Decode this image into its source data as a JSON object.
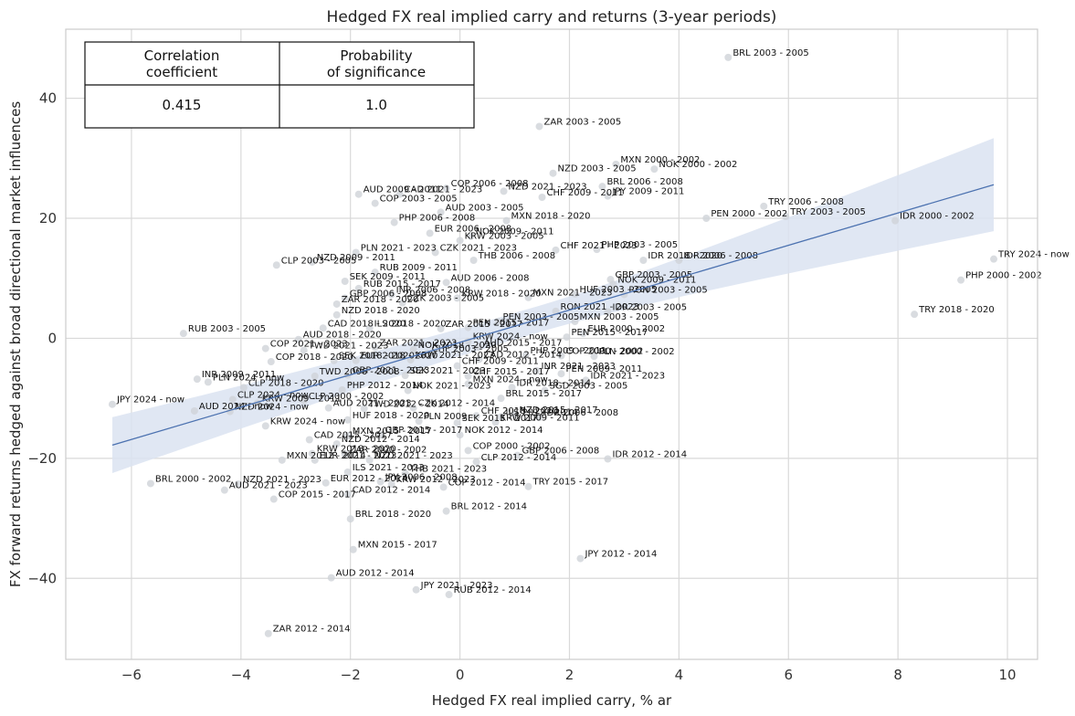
{
  "chart_data": {
    "type": "scatter",
    "title": "Hedged FX real implied carry and returns (3-year periods)",
    "xlabel": "Hedged FX real implied carry, % ar",
    "ylabel": "FX forward returns hedged against broad directional market influences",
    "xlim": [
      -7.2,
      10.55
    ],
    "ylim": [
      -53.5,
      51.5
    ],
    "xticks": [
      -6,
      -4,
      -2,
      0,
      2,
      4,
      6,
      8,
      10
    ],
    "yticks": [
      -40,
      -20,
      0,
      20,
      40
    ],
    "xtick_labels": [
      "−6",
      "−4",
      "−2",
      "0",
      "2",
      "4",
      "6",
      "8",
      "10"
    ],
    "ytick_labels": [
      "−40",
      "−20",
      "0",
      "20",
      "40"
    ],
    "grid": true,
    "colors": {
      "point": "#cfd3d8",
      "line": "#4c72b0",
      "band": "#dbe3f1",
      "grid": "#d9d9d9",
      "frame": "#cccccc"
    },
    "regression": {
      "x": [
        -6.35,
        9.75
      ],
      "y": [
        -17.8,
        25.6
      ],
      "band_lower_right": 18.0,
      "band_upper_right": 33.5,
      "band_lower_left": -22.6,
      "band_upper_left": -13.3
    },
    "stats_table": {
      "headers": [
        [
          "Correlation",
          "coefficient"
        ],
        [
          "Probability",
          "of significance"
        ]
      ],
      "values": [
        "0.415",
        "1.0"
      ]
    },
    "points": [
      {
        "label": "BRL 2003 - 2005",
        "x": 4.9,
        "y": 46.8
      },
      {
        "label": "ZAR 2003 - 2005",
        "x": 1.45,
        "y": 35.3
      },
      {
        "label": "MXN 2000 - 2002",
        "x": 2.85,
        "y": 29.0
      },
      {
        "label": "NOK 2000 - 2002",
        "x": 3.55,
        "y": 28.2
      },
      {
        "label": "NZD 2003 - 2005",
        "x": 1.7,
        "y": 27.5
      },
      {
        "label": "BRL 2006 - 2008",
        "x": 2.6,
        "y": 25.3
      },
      {
        "label": "AUD 2009 - 2011",
        "x": -1.85,
        "y": 24.0
      },
      {
        "label": "CAD 2021 - 2023",
        "x": -1.1,
        "y": 24.0
      },
      {
        "label": "COP 2006 - 2008",
        "x": -0.25,
        "y": 25.0
      },
      {
        "label": "NZD 2021 - 2023",
        "x": 0.8,
        "y": 24.5
      },
      {
        "label": "CHF 2009 - 2011",
        "x": 1.5,
        "y": 23.5
      },
      {
        "label": "JPY 2009 - 2011",
        "x": 2.7,
        "y": 23.7
      },
      {
        "label": "COP 2003 - 2005",
        "x": -1.55,
        "y": 22.5
      },
      {
        "label": "TRY 2006 - 2008",
        "x": 5.55,
        "y": 22.0
      },
      {
        "label": "PEN 2000 - 2002",
        "x": 4.5,
        "y": 20.0
      },
      {
        "label": "TRY 2003 - 2005",
        "x": 5.95,
        "y": 20.3
      },
      {
        "label": "IDR 2000 - 2002",
        "x": 7.95,
        "y": 19.6
      },
      {
        "label": "AUD 2003 - 2005",
        "x": -0.35,
        "y": 21.0
      },
      {
        "label": "PHP 2006 - 2008",
        "x": -1.2,
        "y": 19.3
      },
      {
        "label": "MXN 2018 - 2020",
        "x": 0.85,
        "y": 19.6
      },
      {
        "label": "EUR 2006 - 2008",
        "x": -0.55,
        "y": 17.5
      },
      {
        "label": "NOK 2009 - 2011",
        "x": 0.2,
        "y": 17.0
      },
      {
        "label": "KRW 2003 - 2005",
        "x": 0.0,
        "y": 16.3
      },
      {
        "label": "PLN 2021 - 2023",
        "x": -1.9,
        "y": 14.3
      },
      {
        "label": "CZK 2021 - 2023",
        "x": -0.45,
        "y": 14.3
      },
      {
        "label": "CHF 2021 - 2023",
        "x": 1.75,
        "y": 14.7
      },
      {
        "label": "PHP 2003 - 2005",
        "x": 2.5,
        "y": 14.8
      },
      {
        "label": "THB 2006 - 2008",
        "x": 0.25,
        "y": 13.0
      },
      {
        "label": "IDR 2018 - 2020",
        "x": 3.35,
        "y": 13.0
      },
      {
        "label": "IDR 2006 - 2008",
        "x": 4.0,
        "y": 13.0
      },
      {
        "label": "CLP 2003 - 2005",
        "x": -3.35,
        "y": 12.2
      },
      {
        "label": "NZD 2009 - 2011",
        "x": -2.7,
        "y": 12.7
      },
      {
        "label": "TRY 2024 - now",
        "x": 9.75,
        "y": 13.2
      },
      {
        "label": "RUB 2009 - 2011",
        "x": -1.55,
        "y": 11.0
      },
      {
        "label": "SEK 2009 - 2011",
        "x": -2.1,
        "y": 9.5
      },
      {
        "label": "AUD 2006 - 2008",
        "x": -0.25,
        "y": 9.3
      },
      {
        "label": "GBP 2003 - 2005",
        "x": 2.75,
        "y": 9.8
      },
      {
        "label": "NOK 2009 - 2011",
        "x": 2.8,
        "y": 9.0
      },
      {
        "label": "PHP 2000 - 2002",
        "x": 9.15,
        "y": 9.7
      },
      {
        "label": "RUB 2015 - 2017",
        "x": -1.85,
        "y": 8.3
      },
      {
        "label": "INR 2006 - 2008",
        "x": -1.25,
        "y": 7.3
      },
      {
        "label": "HUF 2003 - 2005",
        "x": 2.1,
        "y": 7.4
      },
      {
        "label": "RON 2003 - 2005",
        "x": 3.0,
        "y": 7.3
      },
      {
        "label": "GBP 2006 - 2008",
        "x": -2.1,
        "y": 6.7
      },
      {
        "label": "KRW 2018 - 2020",
        "x": -0.05,
        "y": 6.7
      },
      {
        "label": "MXN 2021 - 2023",
        "x": 1.25,
        "y": 6.8
      },
      {
        "label": "CZK 2003 - 2005",
        "x": -1.05,
        "y": 5.9
      },
      {
        "label": "ZAR 2018 - 2020",
        "x": -2.25,
        "y": 5.7
      },
      {
        "label": "NZD 2018 - 2020",
        "x": -2.25,
        "y": 3.9
      },
      {
        "label": "RON 2021 - 2023",
        "x": 1.75,
        "y": 4.5
      },
      {
        "label": "TRY 2018 - 2020",
        "x": 8.3,
        "y": 4.0
      },
      {
        "label": "IDR 2003 - 2005",
        "x": 2.7,
        "y": 4.4
      },
      {
        "label": "PEN 2003 - 2005",
        "x": 0.7,
        "y": 2.8
      },
      {
        "label": "MXN 2003 - 2005",
        "x": 2.1,
        "y": 2.8
      },
      {
        "label": "RUB 2003 - 2005",
        "x": -5.05,
        "y": 0.8
      },
      {
        "label": "CAD 2018 - 2020",
        "x": -2.5,
        "y": 1.7
      },
      {
        "label": "ILS 2018 - 2020",
        "x": -1.65,
        "y": 1.7
      },
      {
        "label": "ZAR 2015 - 2017",
        "x": -0.35,
        "y": 1.6
      },
      {
        "label": "PEN 2015 - 2017",
        "x": 0.15,
        "y": 1.8
      },
      {
        "label": "EUR 2000 - 2002",
        "x": 2.25,
        "y": 0.8
      },
      {
        "label": "PEN 2015 - 2017",
        "x": 1.95,
        "y": 0.2
      },
      {
        "label": "AUD 2018 - 2020",
        "x": -2.95,
        "y": -0.2
      },
      {
        "label": "KRW 2024 - now",
        "x": 0.15,
        "y": -0.5
      },
      {
        "label": "COP 2021 - 2023",
        "x": -3.55,
        "y": -1.7
      },
      {
        "label": "TWD 2021 - 2023",
        "x": -2.85,
        "y": -2.0
      },
      {
        "label": "ZAR 2021 - 2023",
        "x": -1.55,
        "y": -1.5
      },
      {
        "label": "NOK 2018 - 2020",
        "x": -0.85,
        "y": -1.9
      },
      {
        "label": "AUD 2015 - 2017",
        "x": 0.35,
        "y": -1.5
      },
      {
        "label": "CHF 2003 - 2005",
        "x": -0.6,
        "y": -2.5
      },
      {
        "label": "PHP 2009 - 2011",
        "x": 1.2,
        "y": -2.8
      },
      {
        "label": "COP 2000 - 2002",
        "x": 1.85,
        "y": -2.9
      },
      {
        "label": "PLN 2000 - 2002",
        "x": 2.45,
        "y": -3.0
      },
      {
        "label": "COP 2018 - 2020",
        "x": -3.45,
        "y": -3.9
      },
      {
        "label": "SEK 2018 - 2020",
        "x": -2.3,
        "y": -3.7
      },
      {
        "label": "EUR 2018 - 2020",
        "x": -1.9,
        "y": -3.7
      },
      {
        "label": "KRW 2021 - 2023",
        "x": -0.9,
        "y": -3.6
      },
      {
        "label": "CAD 2012 - 2014",
        "x": 0.35,
        "y": -3.5
      },
      {
        "label": "CHF 2009 - 2011",
        "x": -0.05,
        "y": -4.6
      },
      {
        "label": "TWD 2006 - 2008",
        "x": -2.65,
        "y": -6.3
      },
      {
        "label": "GBP 2021 - 2023",
        "x": -2.05,
        "y": -6.1
      },
      {
        "label": "SEK 2021 - 2023",
        "x": -1.0,
        "y": -6.2
      },
      {
        "label": "CHF 2015 - 2017",
        "x": 0.15,
        "y": -6.3
      },
      {
        "label": "INR 2021 - 2023",
        "x": 1.4,
        "y": -5.4
      },
      {
        "label": "PEN 2009 - 2011",
        "x": 1.85,
        "y": -5.9
      },
      {
        "label": "IDR 2021 - 2023",
        "x": 2.3,
        "y": -7.0
      },
      {
        "label": "INR 2009 - 2011",
        "x": -4.8,
        "y": -6.8
      },
      {
        "label": "PLN 2024 - now",
        "x": -4.6,
        "y": -7.3
      },
      {
        "label": "CLP 2018 - 2020",
        "x": -3.95,
        "y": -8.2
      },
      {
        "label": "PHP 2012 - 2014",
        "x": -2.15,
        "y": -8.6
      },
      {
        "label": "NOK 2021 - 2023",
        "x": -0.95,
        "y": -8.7
      },
      {
        "label": "MXN 2024 - now",
        "x": 0.15,
        "y": -7.6
      },
      {
        "label": "IDR 2018 - 2014",
        "x": 0.95,
        "y": -8.2
      },
      {
        "label": "SGD 2003 - 2005",
        "x": 1.55,
        "y": -8.7
      },
      {
        "label": "CLP 2024 - now",
        "x": -4.15,
        "y": -10.2
      },
      {
        "label": "KRW 2009 - 2011",
        "x": -3.7,
        "y": -10.8
      },
      {
        "label": "CLP 2000 - 2002",
        "x": -2.85,
        "y": -10.4
      },
      {
        "label": "AUD 2021 - 2023",
        "x": -2.4,
        "y": -11.6
      },
      {
        "label": "TWD 2012 - 2014",
        "x": -1.75,
        "y": -11.7
      },
      {
        "label": "CZK 2012 - 2014",
        "x": -0.85,
        "y": -11.6
      },
      {
        "label": "BRL 2015 - 2017",
        "x": 0.75,
        "y": -10.0
      },
      {
        "label": "JPY 2024 - now",
        "x": -6.35,
        "y": -11.0
      },
      {
        "label": "AUD 2024 - now",
        "x": -4.85,
        "y": -12.1
      },
      {
        "label": "NZD 2024 - now",
        "x": -4.2,
        "y": -12.2
      },
      {
        "label": "KRW 2024 - now",
        "x": -3.55,
        "y": -14.6
      },
      {
        "label": "HUF 2018 - 2020",
        "x": -2.05,
        "y": -13.6
      },
      {
        "label": "PLN 2009",
        "x": -0.75,
        "y": -13.8
      },
      {
        "label": "CHF 2018 - 2020",
        "x": 0.3,
        "y": -12.9
      },
      {
        "label": "ILS 2012 - 2014",
        "x": 0.75,
        "y": -13.1
      },
      {
        "label": "NZD 2015 - 2017",
        "x": 1.0,
        "y": -12.7
      },
      {
        "label": "IDR 2006 - 2008",
        "x": 1.45,
        "y": -13.2
      },
      {
        "label": "SEK 2015 - 2017",
        "x": -0.05,
        "y": -14.1
      },
      {
        "label": "KRW 2009 - 2011",
        "x": 0.65,
        "y": -14.0
      },
      {
        "label": "CAD 2015 - 2017",
        "x": -2.75,
        "y": -16.9
      },
      {
        "label": "MXN 2015 - 2017",
        "x": -2.05,
        "y": -16.2
      },
      {
        "label": "GBP 2015 - 2017",
        "x": -1.45,
        "y": -16.1
      },
      {
        "label": "NOK 2012 - 2014",
        "x": 0.0,
        "y": -16.1
      },
      {
        "label": "NZD 2012 - 2014",
        "x": -2.25,
        "y": -17.6
      },
      {
        "label": "COP 2000 - 2002",
        "x": 0.15,
        "y": -18.7
      },
      {
        "label": "GBP 2006 - 2008",
        "x": 1.05,
        "y": -19.5
      },
      {
        "label": "IDR 2012 - 2014",
        "x": 2.7,
        "y": -20.1
      },
      {
        "label": "KRW 2018 - 2020",
        "x": -2.7,
        "y": -19.2
      },
      {
        "label": "ZAR 2000 - 2002",
        "x": -2.1,
        "y": -19.3
      },
      {
        "label": "MXN 2012 - 2014",
        "x": -3.25,
        "y": -20.3
      },
      {
        "label": "EUR 2021 - 2023",
        "x": -2.65,
        "y": -20.3
      },
      {
        "label": "NZD 2021 - 2023",
        "x": -1.65,
        "y": -20.3
      },
      {
        "label": "CLP 2012 - 2014",
        "x": 0.3,
        "y": -20.6
      },
      {
        "label": "ILS 2021 - 2023",
        "x": -2.05,
        "y": -22.3
      },
      {
        "label": "THB 2021 - 2023",
        "x": -1.0,
        "y": -22.5
      },
      {
        "label": "BRL 2000 - 2002",
        "x": -5.65,
        "y": -24.2
      },
      {
        "label": "NZD 2021 - 2023",
        "x": -4.05,
        "y": -24.3
      },
      {
        "label": "EUR 2012 - 2014",
        "x": -2.45,
        "y": -24.1
      },
      {
        "label": "JPY 2006 - 2008",
        "x": -1.45,
        "y": -23.9
      },
      {
        "label": "KRW 2012 - 2023",
        "x": -1.25,
        "y": -24.3
      },
      {
        "label": "COP 2012 - 2014",
        "x": -0.3,
        "y": -24.8
      },
      {
        "label": "TRY 2015 - 2017",
        "x": 1.25,
        "y": -24.7
      },
      {
        "label": "AUD 2021 - 2023",
        "x": -4.3,
        "y": -25.3
      },
      {
        "label": "CAD 2012 - 2014",
        "x": -2.05,
        "y": -26.0
      },
      {
        "label": "COP 2015 - 2017",
        "x": -3.4,
        "y": -26.8
      },
      {
        "label": "BRL 2012 - 2014",
        "x": -0.25,
        "y": -28.8
      },
      {
        "label": "BRL 2018 - 2020",
        "x": -2.0,
        "y": -30.1
      },
      {
        "label": "MXN 2015 - 2017",
        "x": -1.95,
        "y": -35.2
      },
      {
        "label": "JPY 2012 - 2014",
        "x": 2.2,
        "y": -36.7
      },
      {
        "label": "AUD 2012 - 2014",
        "x": -2.35,
        "y": -39.9
      },
      {
        "label": "JPY 2021 - 2023",
        "x": -0.8,
        "y": -41.9
      },
      {
        "label": "RUB 2012 - 2014",
        "x": -0.2,
        "y": -42.7
      },
      {
        "label": "ZAR 2012 - 2014",
        "x": -3.5,
        "y": -49.2
      }
    ]
  }
}
